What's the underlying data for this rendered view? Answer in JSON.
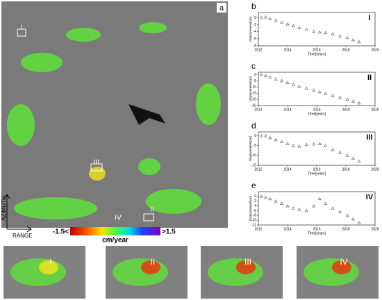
{
  "map": {
    "panel_label": "a",
    "site_labels": [
      "I",
      "II",
      "III",
      "IV"
    ],
    "axis_labels": [
      "AZIMUTH",
      "RANGE"
    ],
    "colorbar": {
      "min_label": "-1.5<",
      "max_label": ">1.5",
      "unit": "cm/year"
    }
  },
  "insets": [
    "I",
    "II",
    "III",
    "IV"
  ],
  "chart_data": [
    {
      "type": "scatter",
      "panel": "b",
      "site": "I",
      "x_label": "Time[years]",
      "y_label": "Displacement[cm]",
      "color": "#555555",
      "x": [
        2012.2,
        2012.5,
        2012.8,
        2013.2,
        2013.6,
        2014.0,
        2014.4,
        2014.8,
        2015.3,
        2015.8,
        2016.2,
        2016.6,
        2017.1,
        2017.6,
        2018.1,
        2018.5,
        2018.9
      ],
      "values": [
        0,
        0.2,
        -0.3,
        -0.8,
        -1.3,
        -1.8,
        -2.3,
        -2.9,
        -3.4,
        -3.9,
        -4.1,
        -4.3,
        -4.6,
        -5.2,
        -5.7,
        -6.3,
        -6.9
      ],
      "xlim": [
        2012,
        2020
      ],
      "xticks": [
        2012,
        2014,
        2016,
        2018,
        2020
      ],
      "ylim": [
        -8,
        1.5
      ],
      "yticks": [
        -8,
        -6,
        -4,
        -2,
        0
      ]
    },
    {
      "type": "scatter",
      "panel": "c",
      "site": "II",
      "x_label": "Time[years]",
      "y_label": "Displacement[cm]",
      "color": "#555555",
      "x": [
        2012.2,
        2012.5,
        2012.8,
        2013.2,
        2013.6,
        2014.0,
        2014.4,
        2014.8,
        2015.3,
        2015.8,
        2016.2,
        2016.6,
        2017.1,
        2017.6,
        2018.1,
        2018.5,
        2018.9
      ],
      "values": [
        0,
        -1,
        -2,
        -3.5,
        -5,
        -6.5,
        -8,
        -9.5,
        -11,
        -12.5,
        -14,
        -15.5,
        -17,
        -18.5,
        -20,
        -21.5,
        -23
      ],
      "xlim": [
        2012,
        2020
      ],
      "xticks": [
        2012,
        2014,
        2016,
        2018,
        2020
      ],
      "ylim": [
        -25,
        2
      ],
      "yticks": [
        -25,
        -20,
        -15,
        -10,
        -5,
        0
      ]
    },
    {
      "type": "scatter",
      "panel": "d",
      "site": "III",
      "x_label": "Time[years]",
      "y_label": "Displacement[cm]",
      "color": "#555555",
      "x": [
        2012.2,
        2012.5,
        2012.8,
        2013.2,
        2013.6,
        2014.0,
        2014.4,
        2014.8,
        2015.3,
        2015.8,
        2016.2,
        2016.6,
        2017.1,
        2017.6,
        2018.1,
        2018.5,
        2018.9
      ],
      "values": [
        0,
        0,
        -1,
        -2,
        -3,
        -4,
        -5,
        -5.3,
        -4.5,
        -4.2,
        -4,
        -5,
        -7,
        -8.5,
        -10,
        -11.5,
        -13
      ],
      "xlim": [
        2012,
        2020
      ],
      "xticks": [
        2012,
        2014,
        2016,
        2018,
        2020
      ],
      "ylim": [
        -15,
        2
      ],
      "yticks": [
        -15,
        -10,
        -5,
        0
      ]
    },
    {
      "type": "scatter",
      "panel": "e",
      "site": "IV",
      "x_label": "Time[years]",
      "y_label": "Displacement[cm]",
      "color": "#555555",
      "x": [
        2012.2,
        2012.5,
        2012.8,
        2013.2,
        2013.6,
        2014.0,
        2014.4,
        2014.8,
        2015.3,
        2015.8,
        2016.2,
        2016.6,
        2017.1,
        2017.6,
        2018.1,
        2018.5,
        2018.9
      ],
      "values": [
        0,
        -0.5,
        -1,
        -2,
        -3,
        -4,
        -5,
        -5.5,
        -6,
        -4,
        -1,
        -3,
        -5,
        -6.5,
        -8,
        -9.5,
        -11
      ],
      "xlim": [
        2012,
        2020
      ],
      "xticks": [
        2012,
        2014,
        2016,
        2018,
        2020
      ],
      "ylim": [
        -12,
        2
      ],
      "yticks": [
        -12,
        -10,
        -8,
        -6,
        -4,
        -2,
        0
      ]
    }
  ]
}
